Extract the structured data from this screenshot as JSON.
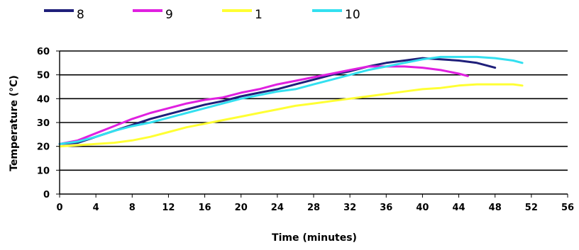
{
  "chart_data": {
    "type": "line",
    "xlabel": "Time (minutes)",
    "ylabel": "Temperature (°C)",
    "xlim": [
      0,
      56
    ],
    "ylim": [
      0,
      60
    ],
    "xticks": [
      0,
      4,
      8,
      12,
      16,
      20,
      24,
      28,
      32,
      36,
      40,
      44,
      48,
      52,
      56
    ],
    "yticks": [
      0,
      10,
      20,
      30,
      40,
      50,
      60
    ],
    "grid": "horizontal",
    "legend_position": "top",
    "series": [
      {
        "name": "8",
        "color": "#1f1f7a",
        "x": [
          0,
          2,
          4,
          6,
          8,
          10,
          12,
          14,
          16,
          18,
          20,
          22,
          24,
          26,
          28,
          30,
          32,
          34,
          36,
          38,
          40,
          42,
          44,
          46,
          48
        ],
        "y": [
          21,
          21.5,
          24,
          26.5,
          29,
          31.5,
          33.5,
          35.5,
          37.5,
          39,
          41,
          42.5,
          44,
          46,
          48,
          50,
          51.5,
          53.5,
          55,
          56,
          57,
          56.5,
          56,
          55,
          53
        ]
      },
      {
        "name": "9",
        "color": "#e020e0",
        "x": [
          0,
          2,
          4,
          6,
          8,
          10,
          12,
          14,
          16,
          18,
          20,
          22,
          24,
          26,
          28,
          30,
          32,
          34,
          36,
          38,
          40,
          42,
          44,
          45
        ],
        "y": [
          21,
          22.5,
          25.5,
          28.5,
          31.5,
          34,
          36,
          38,
          39.5,
          40.5,
          42.5,
          44,
          46,
          47.5,
          49,
          50.5,
          52,
          53.5,
          53.5,
          53.5,
          53,
          52,
          50.5,
          49.5
        ]
      },
      {
        "name": "1",
        "color": "#ffff33",
        "x": [
          0,
          2,
          4,
          6,
          8,
          10,
          12,
          14,
          16,
          18,
          20,
          22,
          24,
          26,
          28,
          30,
          32,
          34,
          36,
          38,
          40,
          42,
          44,
          46,
          48,
          50,
          51
        ],
        "y": [
          20,
          20.5,
          21,
          21.5,
          22.5,
          24,
          26,
          28,
          29.5,
          31,
          32.5,
          34,
          35.5,
          37,
          38,
          39,
          40,
          41,
          42,
          43,
          44,
          44.5,
          45.5,
          46,
          46,
          46,
          45.5
        ]
      },
      {
        "name": "10",
        "color": "#33e0f0",
        "x": [
          0,
          2,
          4,
          6,
          8,
          10,
          12,
          14,
          16,
          18,
          20,
          22,
          24,
          26,
          28,
          30,
          32,
          34,
          36,
          38,
          40,
          42,
          44,
          46,
          48,
          50,
          51
        ],
        "y": [
          21,
          22,
          24,
          26.5,
          28.5,
          30,
          32,
          34,
          36,
          38,
          40,
          41.5,
          43,
          44,
          46,
          48,
          50,
          52,
          53.5,
          55,
          56.5,
          57.5,
          57.5,
          57.5,
          57,
          56,
          55
        ]
      }
    ]
  }
}
